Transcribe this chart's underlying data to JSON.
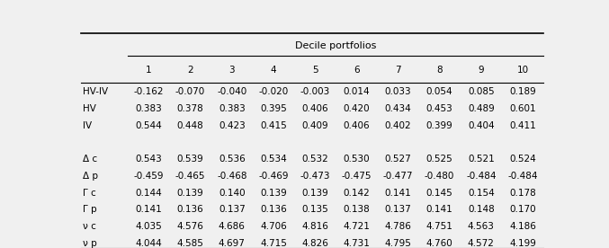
{
  "title": "Decile portfolios",
  "col_headers": [
    "1",
    "2",
    "3",
    "4",
    "5",
    "6",
    "7",
    "8",
    "9",
    "10"
  ],
  "row_labels": [
    "HV-IV",
    "HV",
    "IV",
    "",
    "Δ c",
    "Δ p",
    "Γ c",
    "Γ p",
    "ν c",
    "ν p"
  ],
  "data": [
    [
      "-0.162",
      "-0.070",
      "-0.040",
      "-0.020",
      "-0.003",
      "0.014",
      "0.033",
      "0.054",
      "0.085",
      "0.189"
    ],
    [
      "0.383",
      "0.378",
      "0.383",
      "0.395",
      "0.406",
      "0.420",
      "0.434",
      "0.453",
      "0.489",
      "0.601"
    ],
    [
      "0.544",
      "0.448",
      "0.423",
      "0.415",
      "0.409",
      "0.406",
      "0.402",
      "0.399",
      "0.404",
      "0.411"
    ],
    [
      "",
      "",
      "",
      "",
      "",
      "",
      "",
      "",
      "",
      ""
    ],
    [
      "0.543",
      "0.539",
      "0.536",
      "0.534",
      "0.532",
      "0.530",
      "0.527",
      "0.525",
      "0.521",
      "0.524"
    ],
    [
      "-0.459",
      "-0.465",
      "-0.468",
      "-0.469",
      "-0.473",
      "-0.475",
      "-0.477",
      "-0.480",
      "-0.484",
      "-0.484"
    ],
    [
      "0.144",
      "0.139",
      "0.140",
      "0.139",
      "0.139",
      "0.142",
      "0.141",
      "0.145",
      "0.154",
      "0.178"
    ],
    [
      "0.141",
      "0.136",
      "0.137",
      "0.136",
      "0.135",
      "0.138",
      "0.137",
      "0.141",
      "0.148",
      "0.170"
    ],
    [
      "4.035",
      "4.576",
      "4.686",
      "4.706",
      "4.816",
      "4.721",
      "4.786",
      "4.751",
      "4.563",
      "4.186"
    ],
    [
      "4.044",
      "4.585",
      "4.697",
      "4.715",
      "4.826",
      "4.731",
      "4.795",
      "4.760",
      "4.572",
      "4.199"
    ]
  ],
  "bg_color": "#f0f0f0",
  "text_color": "#000000",
  "fontsize": 7.5
}
